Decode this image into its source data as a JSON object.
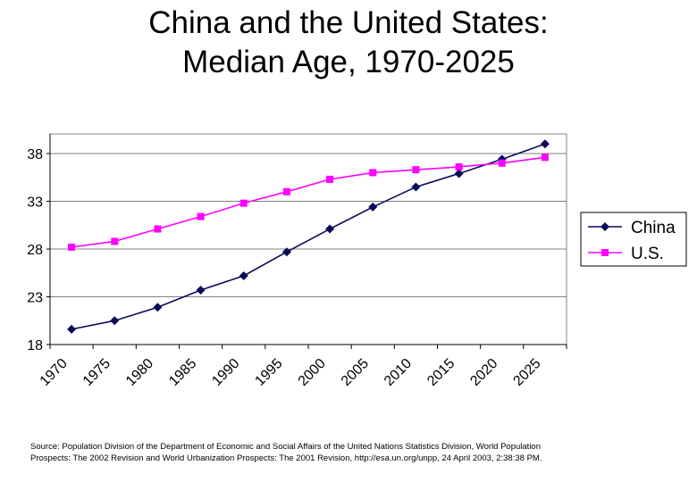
{
  "title_line1": "China and the United States:",
  "title_line2": "Median Age, 1970-2025",
  "source_line1": "Source: Population Division of the Department of Economic and Social Affairs of the United Nations Statistics Division, World Population",
  "source_line2": "Prospects: The 2002 Revision and World Urbanization Prospects: The 2001 Revision, http://esa.un.org/unpp, 24 April 2003, 2:38:38 PM.",
  "chart_data": {
    "type": "line",
    "x": [
      1970,
      1975,
      1980,
      1985,
      1990,
      1995,
      2000,
      2005,
      2010,
      2015,
      2020,
      2025
    ],
    "x_tick_labels": [
      "1970",
      "1975",
      "1980",
      "1985",
      "1990",
      "1995",
      "2000",
      "2005",
      "2010",
      "2015",
      "2020",
      "2025"
    ],
    "y_ticks": [
      18,
      23,
      28,
      33,
      38
    ],
    "ylim": [
      18,
      40
    ],
    "grid": true,
    "legend_position": "right",
    "series": [
      {
        "name": "China",
        "color": "#0a0a5a",
        "marker": "diamond",
        "values": [
          19.6,
          20.5,
          21.9,
          23.7,
          25.2,
          27.7,
          30.1,
          32.4,
          34.5,
          35.9,
          37.4,
          39.0
        ]
      },
      {
        "name": "U.S.",
        "color": "#ff00ff",
        "marker": "square",
        "values": [
          28.2,
          28.8,
          30.1,
          31.4,
          32.8,
          34.0,
          35.3,
          36.0,
          36.3,
          36.6,
          37.0,
          37.6
        ]
      }
    ]
  }
}
